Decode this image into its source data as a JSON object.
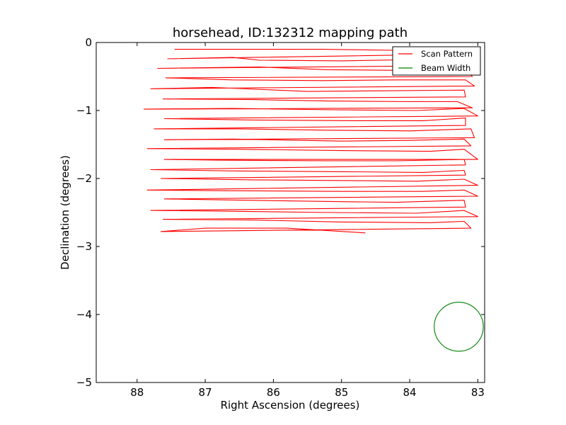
{
  "chart_data": {
    "type": "line",
    "title": "horsehead, ID:132312 mapping path",
    "xlabel": "Right Ascension (degrees)",
    "ylabel": "Declination (degrees)",
    "xlim": [
      88.6,
      82.9
    ],
    "ylim": [
      -5,
      0
    ],
    "x_ticks": [
      88,
      87,
      86,
      85,
      84,
      83
    ],
    "x_tick_labels": [
      "88",
      "87",
      "86",
      "85",
      "84",
      "83"
    ],
    "y_ticks": [
      0,
      -1,
      -2,
      -3,
      -4,
      -5
    ],
    "y_tick_labels": [
      "0",
      "−1",
      "−2",
      "−3",
      "−4",
      "−5"
    ],
    "grid": false,
    "legend": {
      "placement": "top-right",
      "entries": [
        "Scan Pattern",
        "Beam Width"
      ]
    },
    "colors": {
      "scan": "#ff0000",
      "beam": "#008000"
    },
    "series": [
      {
        "name": "Scan Pattern",
        "x": [
          87.45,
          85.3,
          83.85,
          83.18,
          83.18,
          87.55,
          86.6,
          86.2,
          85.0,
          83.8,
          83.12,
          87.7,
          86.2,
          85.2,
          84.0,
          83.2,
          83.08,
          87.58,
          86.6,
          85.3,
          84.2,
          83.18,
          83.05,
          87.8,
          86.9,
          85.5,
          84.4,
          83.2,
          83.18,
          87.62,
          86.3,
          85.2,
          84.0,
          83.3,
          83.08,
          87.9,
          86.6,
          85.1,
          83.9,
          83.2,
          83.0,
          87.6,
          86.3,
          84.8,
          83.8,
          83.18,
          83.18,
          87.75,
          86.5,
          85.2,
          84.0,
          83.1,
          83.05,
          87.6,
          86.6,
          85.0,
          84.0,
          83.2,
          83.1,
          87.85,
          86.5,
          85.0,
          83.7,
          83.2,
          83.0,
          87.6,
          86.8,
          85.2,
          84.2,
          83.2,
          83.18,
          87.8,
          86.5,
          85.0,
          83.8,
          83.2,
          83.18,
          87.65,
          86.3,
          84.9,
          83.9,
          83.2,
          83.0,
          87.85,
          86.6,
          85.0,
          83.8,
          83.2,
          83.0,
          87.6,
          86.4,
          85.1,
          84.2,
          83.2,
          83.18,
          87.8,
          86.7,
          85.2,
          83.9,
          83.2,
          83.0,
          87.62,
          86.3,
          85.0,
          83.7,
          83.2,
          83.1,
          87.65,
          87.0,
          85.8,
          84.65
        ],
        "y": [
          -0.1,
          -0.1,
          -0.12,
          -0.08,
          -0.17,
          -0.24,
          -0.22,
          -0.26,
          -0.27,
          -0.25,
          -0.34,
          -0.38,
          -0.36,
          -0.4,
          -0.41,
          -0.38,
          -0.5,
          -0.52,
          -0.55,
          -0.56,
          -0.55,
          -0.55,
          -0.64,
          -0.68,
          -0.66,
          -0.72,
          -0.71,
          -0.7,
          -0.8,
          -0.83,
          -0.84,
          -0.86,
          -0.87,
          -0.87,
          -0.96,
          -0.98,
          -0.97,
          -0.99,
          -1.0,
          -0.97,
          -1.08,
          -1.12,
          -1.14,
          -1.15,
          -1.15,
          -1.11,
          -1.22,
          -1.27,
          -1.27,
          -1.29,
          -1.3,
          -1.27,
          -1.4,
          -1.43,
          -1.42,
          -1.45,
          -1.44,
          -1.42,
          -1.52,
          -1.56,
          -1.57,
          -1.59,
          -1.6,
          -1.57,
          -1.72,
          -1.72,
          -1.73,
          -1.74,
          -1.74,
          -1.72,
          -1.8,
          -1.87,
          -1.89,
          -1.9,
          -1.91,
          -1.88,
          -1.95,
          -2.0,
          -2.02,
          -2.03,
          -2.04,
          -2.01,
          -2.1,
          -2.17,
          -2.18,
          -2.19,
          -2.19,
          -2.17,
          -2.26,
          -2.3,
          -2.32,
          -2.34,
          -2.35,
          -2.32,
          -2.42,
          -2.47,
          -2.48,
          -2.5,
          -2.51,
          -2.47,
          -2.56,
          -2.6,
          -2.61,
          -2.64,
          -2.65,
          -2.63,
          -2.73,
          -2.78,
          -2.73,
          -2.73,
          -2.8
        ]
      },
      {
        "name": "Beam Width",
        "shape": "circle",
        "center": [
          83.28,
          -4.18
        ],
        "radius": 0.36
      }
    ]
  }
}
